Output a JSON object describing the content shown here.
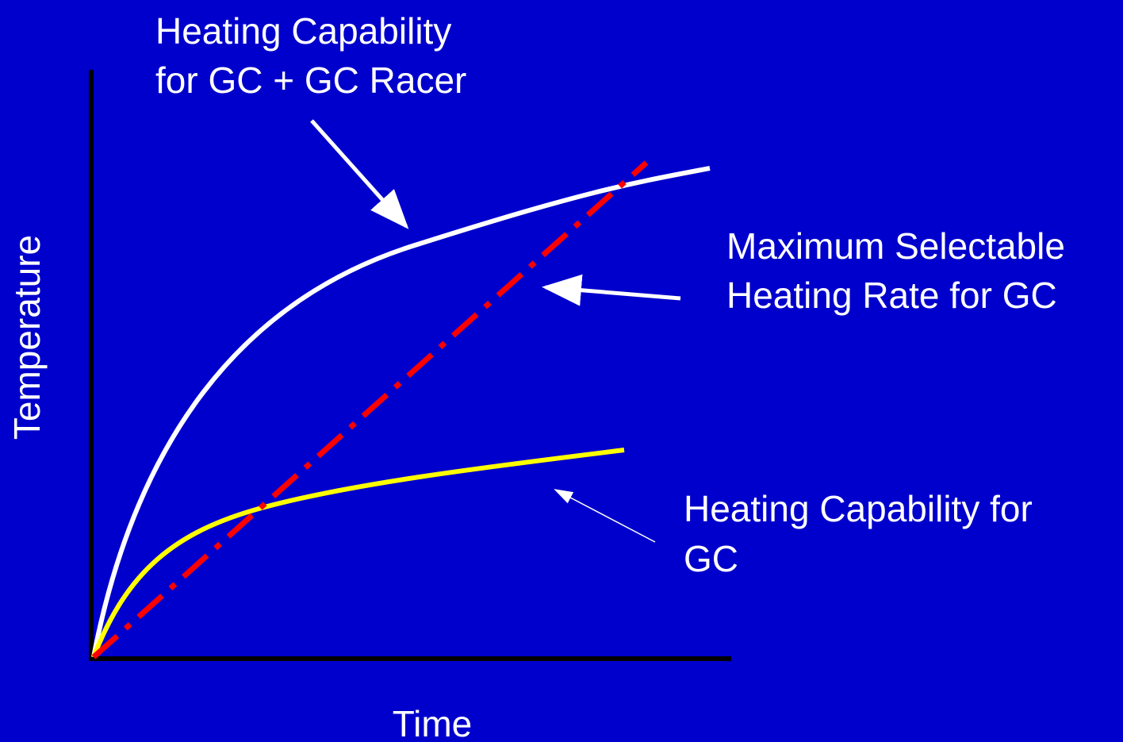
{
  "labels": {
    "y_axis": "Temperature",
    "x_axis": "Time"
  },
  "annotations": [
    {
      "lines": [
        "Heating Capability",
        "for GC + GC Racer"
      ]
    },
    {
      "lines": [
        "Maximum Selectable",
        "Heating Rate for GC"
      ]
    },
    {
      "lines": [
        "Heating Capability for",
        "GC"
      ]
    }
  ]
}
